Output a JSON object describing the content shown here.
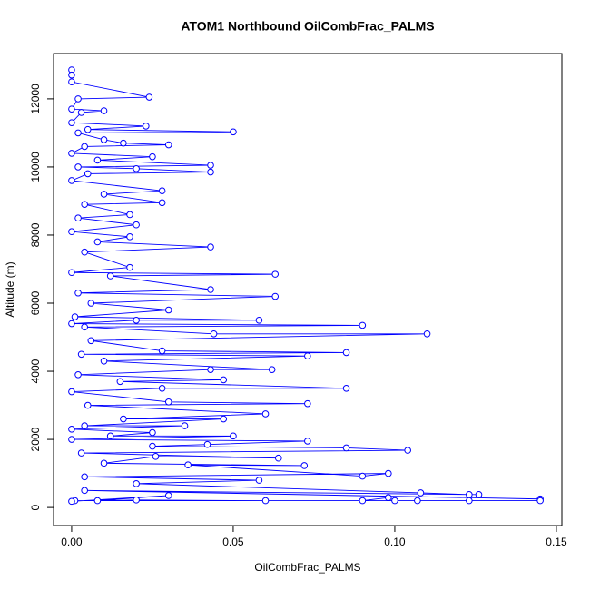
{
  "chart_data": {
    "type": "line",
    "title": "ATOM1 Northbound OilCombFrac_PALMS",
    "x_label": "OilCombFrac_PALMS",
    "y_label": "Altitude (m)",
    "color": "#0000ff",
    "xlim": [
      -0.0056,
      0.1517
    ],
    "ylim": [
      -530,
      13330
    ],
    "xticks": [
      {
        "value": 0,
        "label": "0.00"
      },
      {
        "value": 0.05,
        "label": "0.05"
      },
      {
        "value": 0.1,
        "label": "0.10"
      },
      {
        "value": 0.15,
        "label": "0.15"
      }
    ],
    "yticks": [
      0,
      2000,
      4000,
      6000,
      8000,
      10000,
      12000
    ],
    "x": [
      0,
      0,
      0,
      0.024,
      0.002,
      0,
      0.01,
      0.003,
      0,
      0.023,
      0.005,
      0.05,
      0.002,
      0.01,
      0.016,
      0.03,
      0.004,
      0,
      0.025,
      0.008,
      0.043,
      0.002,
      0.02,
      0.043,
      0.005,
      0,
      0.028,
      0.01,
      0.028,
      0.004,
      0.018,
      0.002,
      0.02,
      0,
      0.018,
      0.008,
      0.043,
      0.004,
      0.018,
      0,
      0.063,
      0.012,
      0.043,
      0.002,
      0.063,
      0.006,
      0.03,
      0.001,
      0.058,
      0.02,
      0,
      0.09,
      0.004,
      0.044,
      0.11,
      0.006,
      0.028,
      0.085,
      0.003,
      0.073,
      0.01,
      0.062,
      0.043,
      0.002,
      0.047,
      0.015,
      0.085,
      0.028,
      0,
      0.03,
      0.073,
      0.005,
      0.06,
      0.016,
      0.047,
      0.004,
      0.035,
      0,
      0.025,
      0.012,
      0.05,
      0,
      0.073,
      0.042,
      0.025,
      0.085,
      0.104,
      0.003,
      0.064,
      0.026,
      0.01,
      0.072,
      0.036,
      0.09,
      0.098,
      0.004,
      0.058,
      0.02,
      0.108,
      0.123,
      0.126,
      0.004,
      0.145,
      0.145,
      0.001,
      0.09,
      0.098,
      0.1,
      0.107,
      0.123,
      0.06,
      0.02,
      0.008,
      0.03,
      0
    ],
    "values": [
      12850,
      12700,
      12500,
      12050,
      12000,
      11700,
      11650,
      11600,
      11300,
      11200,
      11100,
      11030,
      11000,
      10800,
      10700,
      10650,
      10600,
      10400,
      10300,
      10200,
      10050,
      10000,
      9950,
      9850,
      9800,
      9600,
      9300,
      9200,
      8950,
      8900,
      8600,
      8500,
      8300,
      8100,
      7950,
      7800,
      7650,
      7500,
      7050,
      6900,
      6850,
      6800,
      6400,
      6300,
      6200,
      6000,
      5800,
      5600,
      5500,
      5500,
      5400,
      5350,
      5300,
      5100,
      5100,
      4900,
      4600,
      4550,
      4500,
      4450,
      4300,
      4050,
      4050,
      3900,
      3750,
      3700,
      3500,
      3500,
      3400,
      3100,
      3050,
      3000,
      2750,
      2600,
      2600,
      2400,
      2400,
      2300,
      2200,
      2100,
      2100,
      2000,
      1950,
      1850,
      1800,
      1750,
      1680,
      1600,
      1450,
      1500,
      1300,
      1230,
      1250,
      920,
      1000,
      900,
      800,
      700,
      430,
      380,
      380,
      500,
      250,
      200,
      200,
      200,
      290,
      200,
      200,
      200,
      200,
      220,
      200,
      350,
      180
    ]
  }
}
